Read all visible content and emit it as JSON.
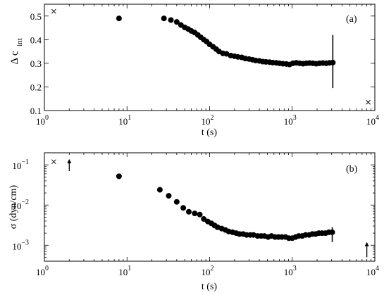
{
  "chart_data": [
    {
      "type": "scatter",
      "panel_label": "(a)",
      "xlabel": "t (s)",
      "ylabel_main": "Δ c",
      "ylabel_sub": "int",
      "xscale": "log",
      "yscale": "linear",
      "xlim": [
        1,
        10000
      ],
      "ylim": [
        0.1,
        0.55
      ],
      "xticks": [
        1,
        10,
        100,
        1000,
        10000
      ],
      "xtick_labels": [
        {
          "base": "10",
          "exp": "0"
        },
        {
          "base": "10",
          "exp": "1"
        },
        {
          "base": "10",
          "exp": "2"
        },
        {
          "base": "10",
          "exp": "3"
        },
        {
          "base": "10",
          "exp": "4"
        }
      ],
      "yticks": [
        0.1,
        0.2,
        0.3,
        0.4,
        0.5
      ],
      "ytick_labels": [
        "0.1",
        "0.2",
        "0.3",
        "0.4",
        "0.5"
      ],
      "grid": false,
      "series": [
        {
          "marker": "circle",
          "x": [
            8,
            28,
            34,
            40,
            45,
            50,
            55,
            60,
            66,
            72,
            78,
            85,
            92,
            100,
            110,
            120,
            130,
            145,
            160,
            180,
            200,
            220,
            245,
            270,
            300,
            330,
            360,
            400,
            440,
            480,
            530,
            580,
            640,
            700,
            770,
            850,
            930,
            1020,
            1120,
            1230,
            1350,
            1480,
            1620,
            1780,
            1950,
            2140,
            2350,
            2580,
            2830,
            3100
          ],
          "y": [
            0.49,
            0.49,
            0.483,
            0.475,
            0.462,
            0.452,
            0.445,
            0.437,
            0.43,
            0.42,
            0.41,
            0.4,
            0.392,
            0.38,
            0.37,
            0.36,
            0.35,
            0.342,
            0.34,
            0.333,
            0.33,
            0.327,
            0.325,
            0.32,
            0.318,
            0.315,
            0.312,
            0.31,
            0.307,
            0.306,
            0.305,
            0.303,
            0.302,
            0.3,
            0.298,
            0.297,
            0.295,
            0.3,
            0.302,
            0.3,
            0.298,
            0.3,
            0.301,
            0.3,
            0.298,
            0.3,
            0.301,
            0.3,
            0.302,
            0.303
          ]
        },
        {
          "marker": "x",
          "x": [
            1.3,
            8300
          ],
          "y": [
            0.52,
            0.135
          ]
        }
      ],
      "error_bar": {
        "x": 3100,
        "y_low": 0.195,
        "y_high": 0.42
      }
    },
    {
      "type": "scatter",
      "panel_label": "(b)",
      "xlabel": "t (s)",
      "ylabel": "σ (dyn/cm)",
      "xscale": "log",
      "yscale": "log",
      "xlim": [
        1,
        10000
      ],
      "ylim": [
        0.0004,
        0.2
      ],
      "xticks": [
        1,
        10,
        100,
        1000,
        10000
      ],
      "xtick_labels": [
        {
          "base": "10",
          "exp": "0"
        },
        {
          "base": "10",
          "exp": "1"
        },
        {
          "base": "10",
          "exp": "2"
        },
        {
          "base": "10",
          "exp": "3"
        },
        {
          "base": "10",
          "exp": "4"
        }
      ],
      "yticks": [
        0.001,
        0.01,
        0.1
      ],
      "ytick_labels": [
        {
          "base": "10",
          "exp": "−3"
        },
        {
          "base": "10",
          "exp": "−2"
        },
        {
          "base": "10",
          "exp": "−1"
        }
      ],
      "grid": false,
      "series": [
        {
          "marker": "circle",
          "x": [
            8,
            25,
            32,
            40,
            48,
            56,
            66,
            76,
            85,
            95,
            105,
            115,
            125,
            140,
            155,
            170,
            190,
            210,
            230,
            255,
            280,
            310,
            340,
            380,
            420,
            460,
            510,
            560,
            620,
            680,
            750,
            830,
            910,
            1000,
            1100,
            1200,
            1320,
            1450,
            1600,
            1750,
            1920,
            2100,
            2300,
            2530,
            2780,
            3050
          ],
          "y": [
            0.052,
            0.024,
            0.017,
            0.012,
            0.0085,
            0.0068,
            0.0062,
            0.0058,
            0.0045,
            0.0039,
            0.0035,
            0.0031,
            0.0028,
            0.0026,
            0.0024,
            0.0022,
            0.0021,
            0.002,
            0.0019,
            0.0019,
            0.0018,
            0.0018,
            0.0018,
            0.0017,
            0.0017,
            0.0017,
            0.0016,
            0.0017,
            0.0016,
            0.0016,
            0.0016,
            0.0016,
            0.0015,
            0.0015,
            0.0016,
            0.0017,
            0.0017,
            0.0018,
            0.0018,
            0.0019,
            0.0019,
            0.002,
            0.002,
            0.002,
            0.0021,
            0.0021
          ]
        },
        {
          "marker": "x",
          "x": [
            1.3
          ],
          "y": [
            0.12
          ]
        }
      ],
      "error_bar": {
        "x": 3050,
        "y_low": 0.0012,
        "y_high": 0.0028
      },
      "arrows": [
        {
          "direction": "up",
          "x": 2,
          "y_low": 0.07,
          "y_high": 0.14
        },
        {
          "direction": "up",
          "x": 8000,
          "y_low": 0.0005,
          "y_high": 0.0012
        }
      ]
    }
  ]
}
